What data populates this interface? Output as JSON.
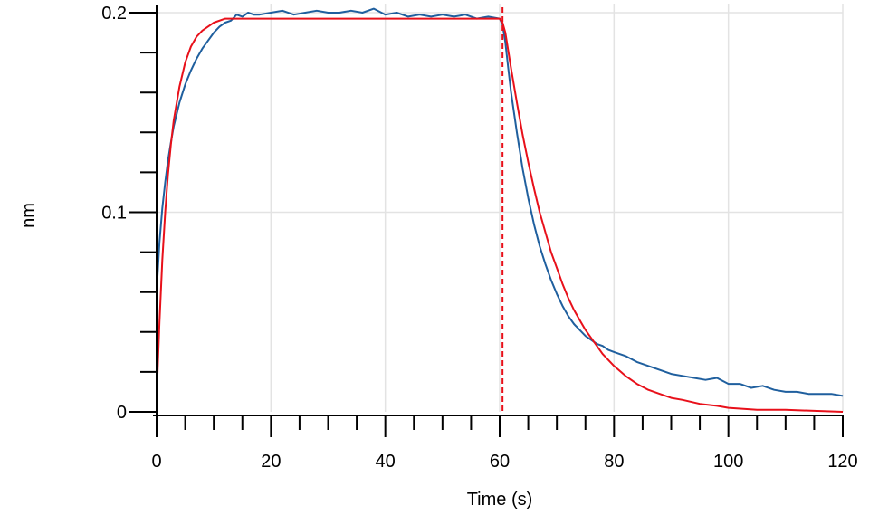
{
  "chart_data": {
    "type": "line",
    "title": "",
    "xlabel": "Time (s)",
    "ylabel": "nm",
    "xlim": [
      0,
      120
    ],
    "ylim": [
      0,
      0.2
    ],
    "x_ticks": [
      0,
      20,
      40,
      60,
      80,
      100,
      120
    ],
    "x_tick_labels": [
      "0",
      "20",
      "40",
      "60",
      "80",
      "100",
      "120"
    ],
    "y_ticks": [
      0,
      0.1,
      0.2
    ],
    "y_tick_labels": [
      "0",
      "0.1",
      "0.2"
    ],
    "x_minor_step": 5,
    "y_minor_step": 0.02,
    "grid": true,
    "legend": "none",
    "series": [
      {
        "color": "#1f5f9e",
        "style": "solid",
        "x": [
          0,
          0.5,
          1,
          1.5,
          2,
          2.5,
          3,
          3.5,
          4,
          5,
          6,
          7,
          8,
          9,
          10,
          11,
          12,
          13,
          14,
          15,
          16,
          17,
          18,
          20,
          22,
          24,
          26,
          28,
          30,
          32,
          34,
          36,
          38,
          40,
          42,
          44,
          46,
          48,
          50,
          52,
          54,
          56,
          58,
          60,
          60.5,
          61,
          61.5,
          62,
          63,
          64,
          65,
          66,
          67,
          68,
          69,
          70,
          71,
          72,
          73,
          74,
          75,
          76,
          77,
          78,
          79,
          80,
          82,
          84,
          86,
          88,
          90,
          92,
          94,
          96,
          98,
          100,
          102,
          104,
          106,
          108,
          110,
          112,
          114,
          116,
          118,
          120
        ],
        "y": [
          0.06,
          0.085,
          0.102,
          0.115,
          0.126,
          0.135,
          0.143,
          0.149,
          0.155,
          0.164,
          0.171,
          0.177,
          0.182,
          0.186,
          0.19,
          0.193,
          0.195,
          0.196,
          0.199,
          0.198,
          0.2,
          0.199,
          0.199,
          0.2,
          0.201,
          0.199,
          0.2,
          0.201,
          0.2,
          0.2,
          0.201,
          0.2,
          0.202,
          0.199,
          0.2,
          0.198,
          0.199,
          0.198,
          0.199,
          0.198,
          0.199,
          0.197,
          0.198,
          0.197,
          0.194,
          0.185,
          0.172,
          0.16,
          0.14,
          0.122,
          0.107,
          0.094,
          0.083,
          0.074,
          0.066,
          0.059,
          0.053,
          0.048,
          0.044,
          0.041,
          0.038,
          0.036,
          0.034,
          0.033,
          0.031,
          0.03,
          0.028,
          0.025,
          0.023,
          0.021,
          0.019,
          0.018,
          0.017,
          0.016,
          0.017,
          0.014,
          0.014,
          0.012,
          0.013,
          0.011,
          0.01,
          0.01,
          0.009,
          0.009,
          0.009,
          0.008
        ]
      },
      {
        "color": "#e8101a",
        "style": "solid",
        "x": [
          0,
          0.5,
          1,
          1.5,
          2,
          2.5,
          3,
          4,
          5,
          6,
          7,
          8,
          9,
          10,
          12,
          14,
          16,
          20,
          30,
          40,
          50,
          60,
          60.5,
          61,
          62,
          63,
          64,
          65,
          66,
          67,
          68,
          69,
          70,
          71,
          72,
          73,
          74,
          75,
          76,
          78,
          80,
          82,
          84,
          86,
          88,
          90,
          92,
          95,
          98,
          100,
          105,
          110,
          115,
          120
        ],
        "y": [
          0.007,
          0.045,
          0.076,
          0.1,
          0.119,
          0.134,
          0.146,
          0.163,
          0.175,
          0.183,
          0.188,
          0.191,
          0.193,
          0.195,
          0.197,
          0.197,
          0.197,
          0.197,
          0.197,
          0.197,
          0.197,
          0.197,
          0.195,
          0.19,
          0.172,
          0.155,
          0.139,
          0.125,
          0.112,
          0.1,
          0.09,
          0.08,
          0.072,
          0.064,
          0.057,
          0.051,
          0.046,
          0.041,
          0.037,
          0.029,
          0.023,
          0.018,
          0.014,
          0.011,
          0.009,
          0.007,
          0.006,
          0.004,
          0.003,
          0.002,
          0.001,
          0.001,
          0.0005,
          0
        ]
      }
    ],
    "vlines": [
      {
        "x": 0,
        "color": "#e8101a",
        "style": "dashed"
      },
      {
        "x": 60.5,
        "color": "#e8101a",
        "style": "dashed"
      }
    ]
  }
}
